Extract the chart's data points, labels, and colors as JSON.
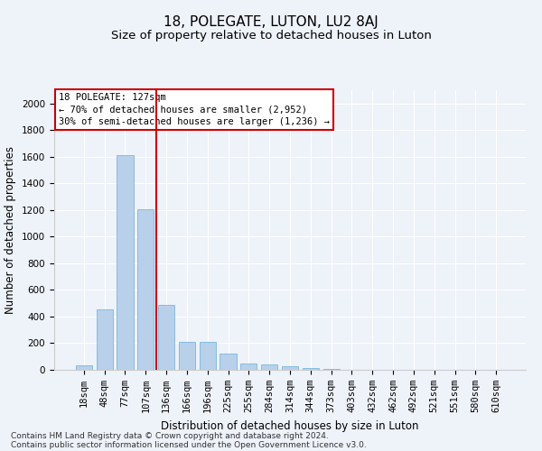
{
  "title": "18, POLEGATE, LUTON, LU2 8AJ",
  "subtitle": "Size of property relative to detached houses in Luton",
  "xlabel": "Distribution of detached houses by size in Luton",
  "ylabel": "Number of detached properties",
  "categories": [
    "18sqm",
    "48sqm",
    "77sqm",
    "107sqm",
    "136sqm",
    "166sqm",
    "196sqm",
    "225sqm",
    "255sqm",
    "284sqm",
    "314sqm",
    "344sqm",
    "373sqm",
    "403sqm",
    "432sqm",
    "462sqm",
    "492sqm",
    "521sqm",
    "551sqm",
    "580sqm",
    "610sqm"
  ],
  "values": [
    35,
    455,
    1610,
    1205,
    490,
    210,
    210,
    125,
    50,
    40,
    25,
    15,
    10,
    0,
    0,
    0,
    0,
    0,
    0,
    0,
    0
  ],
  "bar_color": "#b8d0ea",
  "bar_edgecolor": "#6aaed6",
  "vline_x": 3.5,
  "vline_color": "#cc0000",
  "annotation_text": "18 POLEGATE: 127sqm\n← 70% of detached houses are smaller (2,952)\n30% of semi-detached houses are larger (1,236) →",
  "annotation_box_color": "#ffffff",
  "annotation_box_edgecolor": "#cc0000",
  "ylim": [
    0,
    2100
  ],
  "yticks": [
    0,
    200,
    400,
    600,
    800,
    1000,
    1200,
    1400,
    1600,
    1800,
    2000
  ],
  "footer1": "Contains HM Land Registry data © Crown copyright and database right 2024.",
  "footer2": "Contains public sector information licensed under the Open Government Licence v3.0.",
  "title_fontsize": 11,
  "subtitle_fontsize": 9.5,
  "axis_label_fontsize": 8.5,
  "tick_fontsize": 7.5,
  "annotation_fontsize": 7.5,
  "footer_fontsize": 6.5,
  "bg_color": "#eef2f9",
  "plot_bg_color": "#eef2f9"
}
